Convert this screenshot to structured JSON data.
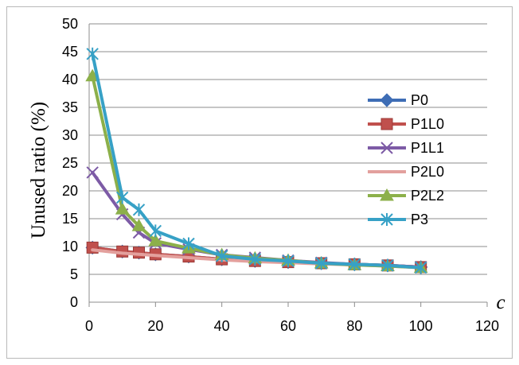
{
  "chart_data": {
    "type": "line",
    "title": "",
    "xlabel": "c",
    "ylabel": "Unused ratio (%)",
    "xlim": [
      0,
      120
    ],
    "ylim": [
      0,
      50
    ],
    "xticks": [
      0,
      20,
      40,
      60,
      80,
      100,
      120
    ],
    "yticks": [
      0,
      5,
      10,
      15,
      20,
      25,
      30,
      35,
      40,
      45,
      50
    ],
    "grid": "horizontal",
    "legend_position": "right",
    "series": [
      {
        "name": "P0",
        "color": "#3e6db5",
        "marker": "diamond",
        "x": [
          1,
          10,
          15,
          20,
          30,
          40,
          50,
          60,
          70,
          80,
          90,
          100
        ],
        "y": [
          9.8,
          9.1,
          8.9,
          8.6,
          8.2,
          7.7,
          7.4,
          7.2,
          7.0,
          6.8,
          6.6,
          6.3
        ]
      },
      {
        "name": "P1L0",
        "color": "#c0504d",
        "marker": "square",
        "x": [
          1,
          10,
          15,
          20,
          30,
          40,
          50,
          60,
          70,
          80,
          90,
          100
        ],
        "y": [
          9.8,
          9.1,
          8.9,
          8.6,
          8.2,
          7.7,
          7.4,
          7.2,
          7.0,
          6.8,
          6.6,
          6.3
        ]
      },
      {
        "name": "P1L1",
        "color": "#7d5ba6",
        "marker": "x",
        "x": [
          1,
          10,
          15,
          20,
          30,
          40,
          50,
          60,
          70,
          80,
          90,
          100
        ],
        "y": [
          23.3,
          15.8,
          12.5,
          10.6,
          9.5,
          8.5,
          8.0,
          7.5,
          7.1,
          6.8,
          6.6,
          6.3
        ]
      },
      {
        "name": "P2L0",
        "color": "#e3a09d",
        "marker": "none",
        "x": [
          1,
          10,
          15,
          20,
          30,
          40,
          50,
          60,
          70,
          80,
          90,
          100
        ],
        "y": [
          9.4,
          8.8,
          8.6,
          8.4,
          8.0,
          7.6,
          7.3,
          7.1,
          6.9,
          6.7,
          6.5,
          6.2
        ]
      },
      {
        "name": "P2L2",
        "color": "#8cb04a",
        "marker": "triangle",
        "x": [
          1,
          10,
          15,
          20,
          30,
          40,
          50,
          60,
          70,
          80,
          90,
          100
        ],
        "y": [
          40.6,
          16.7,
          13.7,
          11.0,
          9.7,
          8.5,
          7.9,
          7.5,
          7.0,
          6.7,
          6.5,
          6.2
        ]
      },
      {
        "name": "P3",
        "color": "#37a1c6",
        "marker": "asterisk",
        "x": [
          1,
          10,
          15,
          20,
          30,
          40,
          50,
          60,
          70,
          80,
          90,
          100
        ],
        "y": [
          44.6,
          18.8,
          16.6,
          12.8,
          10.5,
          8.3,
          7.7,
          7.4,
          7.0,
          6.8,
          6.6,
          6.2
        ]
      }
    ]
  }
}
